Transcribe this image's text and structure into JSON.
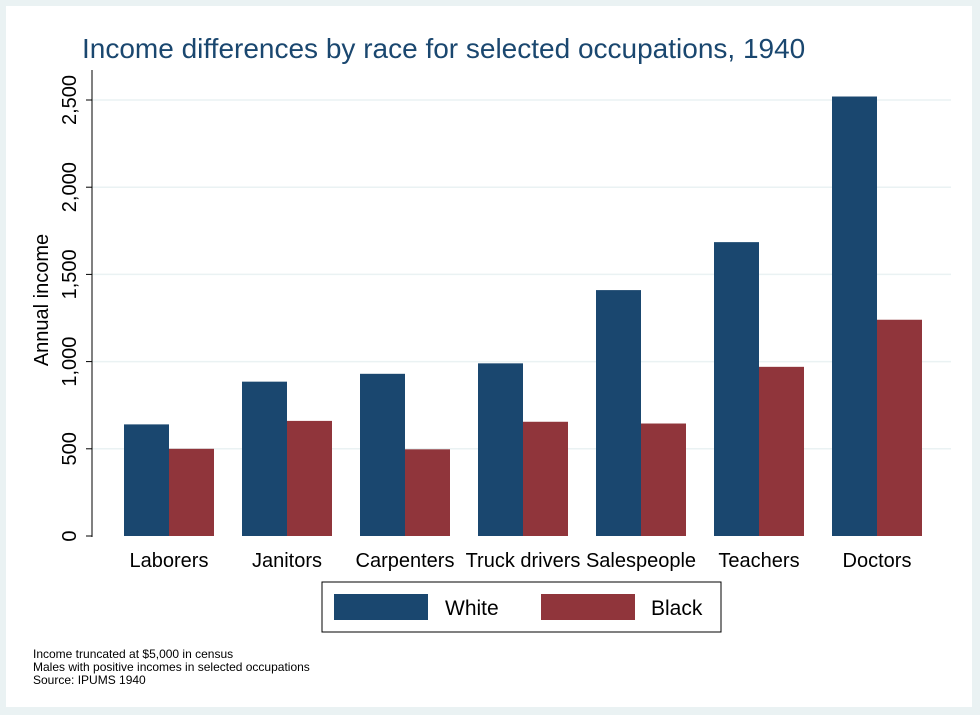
{
  "chart_data": {
    "type": "bar",
    "title": "Income differences by race for selected occupations, 1940",
    "xlabel": "",
    "ylabel": "Annual income",
    "ylim": [
      0,
      2600
    ],
    "yticks": [
      0,
      500,
      1000,
      1500,
      2000,
      2500
    ],
    "ytick_labels": [
      "0",
      "500",
      "1,000",
      "1,500",
      "2,000",
      "2,500"
    ],
    "grid": true,
    "legend_position": "bottom",
    "categories": [
      "Laborers",
      "Janitors",
      "Carpenters",
      "Truck drivers",
      "Salespeople",
      "Teachers",
      "Doctors"
    ],
    "series": [
      {
        "name": "White",
        "color": "#1a476f",
        "values": [
          640,
          885,
          930,
          990,
          1410,
          1685,
          2520
        ]
      },
      {
        "name": "Black",
        "color": "#90353b",
        "values": [
          500,
          660,
          497,
          655,
          645,
          970,
          1240
        ]
      }
    ],
    "notes": [
      "Income truncated at $5,000 in census",
      "Males with positive incomes in selected occupations",
      "Source: IPUMS 1940"
    ]
  }
}
